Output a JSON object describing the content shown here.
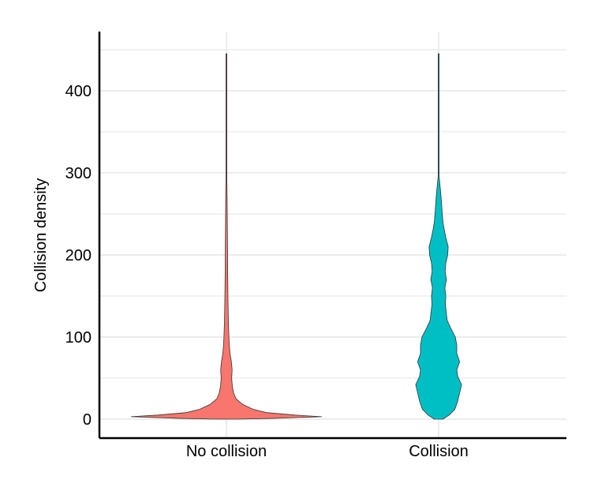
{
  "chart_data": {
    "type": "violin",
    "title": "",
    "xlabel": "",
    "ylabel": "Collision density",
    "ylim": [
      0,
      450
    ],
    "yticks": [
      0,
      100,
      200,
      300,
      400
    ],
    "grid": true,
    "legend": "none",
    "categories": [
      "No collision",
      "Collision"
    ],
    "series": [
      {
        "category": "No collision",
        "color": "#F8766D",
        "y_max": 445,
        "profile": [
          [
            0,
            0.12
          ],
          [
            1,
            0.5
          ],
          [
            3,
            1.0
          ],
          [
            5,
            0.72
          ],
          [
            8,
            0.42
          ],
          [
            12,
            0.28
          ],
          [
            18,
            0.17
          ],
          [
            25,
            0.1
          ],
          [
            32,
            0.075
          ],
          [
            40,
            0.062
          ],
          [
            50,
            0.055
          ],
          [
            60,
            0.06
          ],
          [
            70,
            0.052
          ],
          [
            80,
            0.038
          ],
          [
            90,
            0.03
          ],
          [
            100,
            0.026
          ],
          [
            120,
            0.02
          ],
          [
            150,
            0.016
          ],
          [
            180,
            0.013
          ],
          [
            200,
            0.012
          ],
          [
            230,
            0.01
          ],
          [
            260,
            0.008
          ],
          [
            290,
            0.005
          ],
          [
            310,
            0.003
          ],
          [
            330,
            0.002
          ],
          [
            360,
            0.0015
          ],
          [
            400,
            0.0015
          ],
          [
            445,
            0.0005
          ]
        ]
      },
      {
        "category": "Collision",
        "color": "#00BFC4",
        "y_max": 445,
        "profile": [
          [
            0,
            0.045
          ],
          [
            5,
            0.11
          ],
          [
            12,
            0.17
          ],
          [
            22,
            0.2
          ],
          [
            32,
            0.22
          ],
          [
            42,
            0.24
          ],
          [
            52,
            0.2
          ],
          [
            60,
            0.19
          ],
          [
            70,
            0.22
          ],
          [
            80,
            0.19
          ],
          [
            90,
            0.19
          ],
          [
            100,
            0.175
          ],
          [
            110,
            0.13
          ],
          [
            120,
            0.09
          ],
          [
            130,
            0.08
          ],
          [
            140,
            0.07
          ],
          [
            150,
            0.075
          ],
          [
            160,
            0.065
          ],
          [
            170,
            0.082
          ],
          [
            180,
            0.068
          ],
          [
            190,
            0.075
          ],
          [
            200,
            0.095
          ],
          [
            210,
            0.1
          ],
          [
            220,
            0.078
          ],
          [
            230,
            0.06
          ],
          [
            240,
            0.045
          ],
          [
            255,
            0.035
          ],
          [
            270,
            0.026
          ],
          [
            280,
            0.018
          ],
          [
            290,
            0.01
          ],
          [
            295,
            0.004
          ],
          [
            300,
            0.0015
          ],
          [
            445,
            0.0012
          ]
        ]
      }
    ]
  }
}
